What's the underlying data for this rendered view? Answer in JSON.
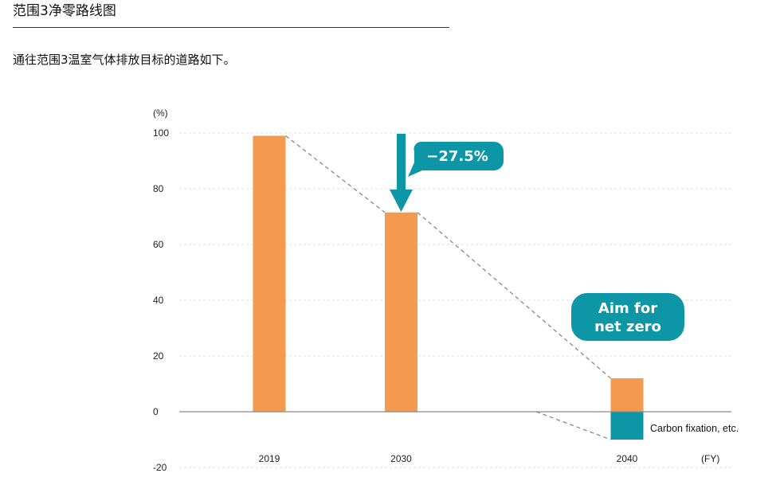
{
  "page": {
    "section_title": "范围3净零路线图",
    "intro_text": "通往范围3温室气体排放目标的道路如下。"
  },
  "colors": {
    "bar": "#f39a4e",
    "carbon_fixation": "#0d96a6",
    "callout": "#0d96a6",
    "grid": "#dddddd",
    "trend": "#888888"
  },
  "chart_data": {
    "type": "bar",
    "categories": [
      "2019",
      "2030",
      "2040"
    ],
    "values": [
      99,
      71.5,
      12
    ],
    "negative_values": [
      0,
      0,
      -10
    ],
    "title": "",
    "y_unit_label": "(%)",
    "x_unit_label": "(FY)",
    "ylim": [
      -20,
      100
    ],
    "yticks": [
      -20,
      0,
      20,
      40,
      60,
      80,
      100
    ],
    "grid": true,
    "trend_line": "dashed",
    "annotations": {
      "reduction": "−27.5%",
      "target_line1": "Aim for",
      "target_line2": "net zero",
      "negative_label": "Carbon fixation, etc."
    }
  }
}
